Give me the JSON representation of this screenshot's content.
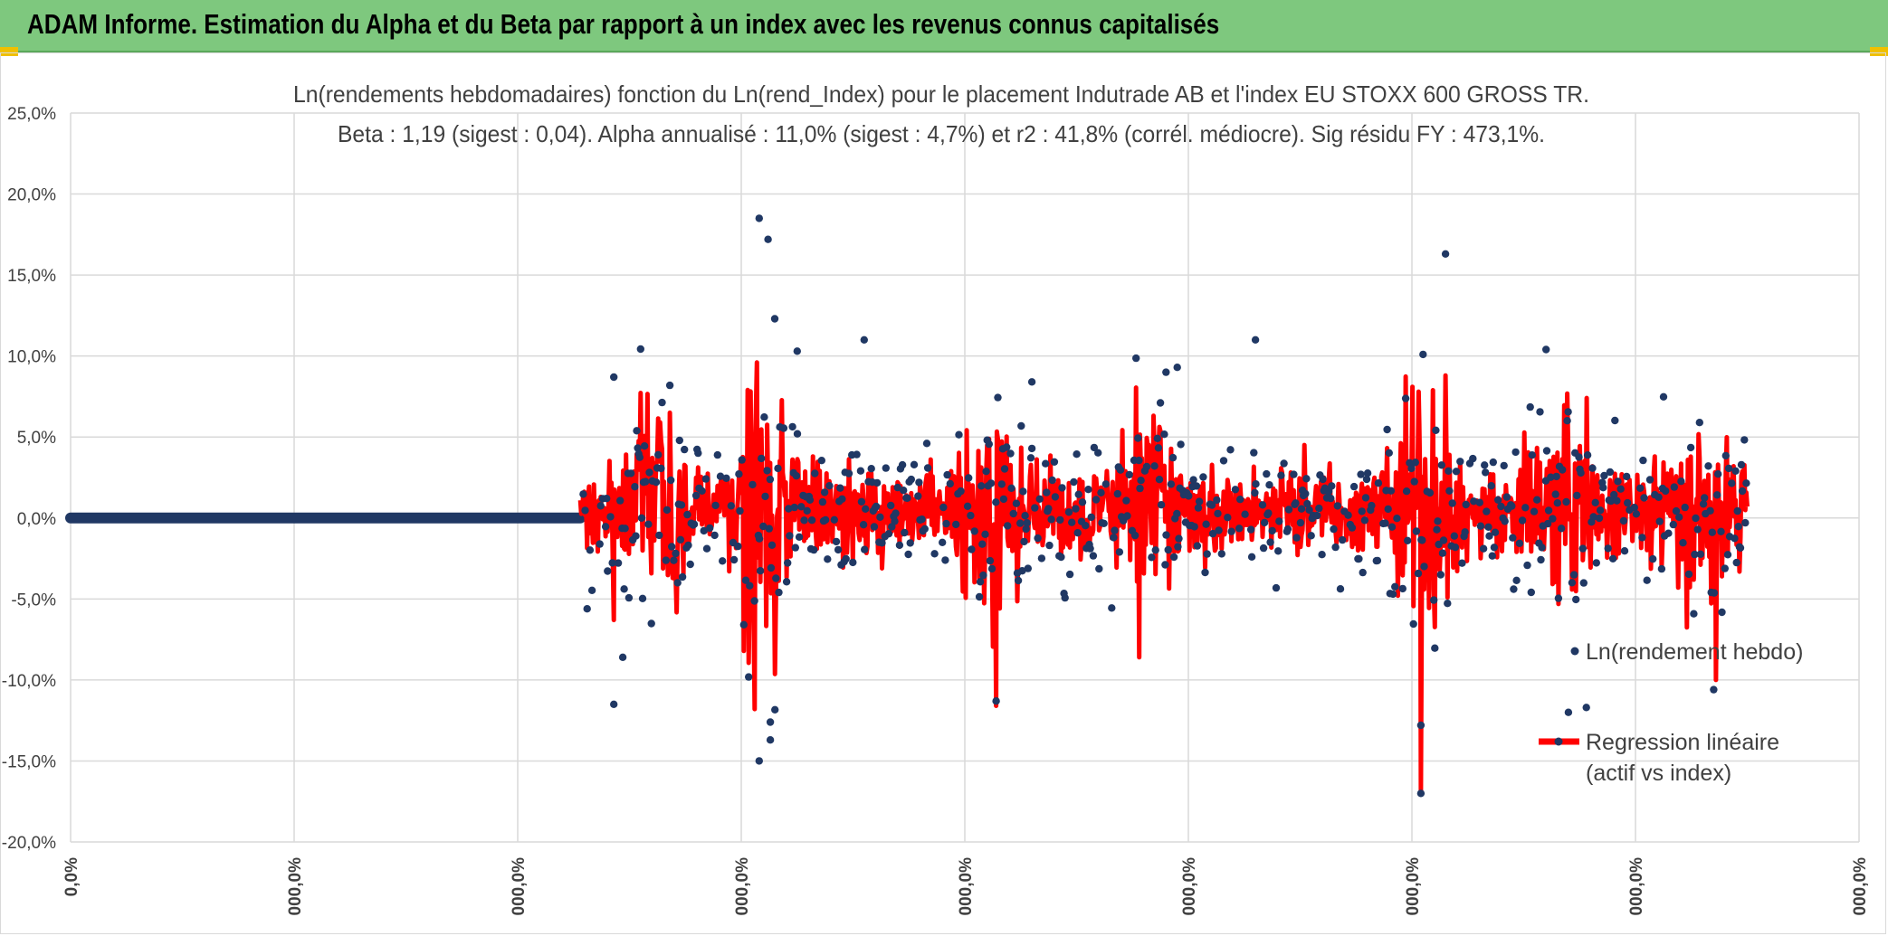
{
  "header": {
    "title": "ADAM Informe. Estimation du Alpha et du Beta par rapport à un index avec les revenus connus capitalisés"
  },
  "colors": {
    "header_bg": "#7ec87e",
    "points": "#203864",
    "regression": "#ff0000",
    "grid": "#d9d9d9",
    "text": "#404040"
  },
  "chart_data": {
    "type": "scatter",
    "title": "Ln(rendements hebdomadaires) fonction du Ln(rend_Index) pour le placement Indutrade AB et l'index EU STOXX 600 GROSS TR.",
    "subtitle": "Beta : 1,19 (sigest : 0,04). Alpha annualisé : 11,0% (sigest : 4,7%) et r2 : 41,8% (corrél. médiocre). Sig résidu FY : 473,1%.",
    "y_ticks": [
      "25,0%",
      "20,0%",
      "15,0%",
      "10,0%",
      "5,0%",
      "0,0%",
      "-5,0%",
      "-10,0%",
      "-15,0%",
      "-20,0%"
    ],
    "x_ticks": [
      "0,0%",
      "000,0%",
      "000,0%",
      "000,0%",
      "000,0%",
      "000,0%",
      "000,0%",
      "000,0%",
      "000,0%"
    ],
    "ylim": [
      -20,
      25
    ],
    "xlim": [
      0,
      8
    ],
    "grid": true,
    "legend_position": "bottom-right",
    "flat_segment": {
      "x_start": 0,
      "x_end": 2.28,
      "y": 0
    },
    "data_x_range": [
      2.28,
      7.5
    ],
    "series": [
      {
        "name": "Ln(rendement hebdo)",
        "kind": "points"
      },
      {
        "name": "Regression linéaire (actif vs index)",
        "kind": "line"
      }
    ],
    "notable_points": [
      {
        "x": 3.08,
        "y": 18.5
      },
      {
        "x": 3.12,
        "y": 17.2
      },
      {
        "x": 3.15,
        "y": 12.3
      },
      {
        "x": 3.25,
        "y": 10.3
      },
      {
        "x": 3.55,
        "y": 11.0
      },
      {
        "x": 5.3,
        "y": 11.0
      },
      {
        "x": 6.15,
        "y": 16.3
      },
      {
        "x": 6.05,
        "y": 10.1
      },
      {
        "x": 6.6,
        "y": 10.4
      },
      {
        "x": 3.08,
        "y": -15.0
      },
      {
        "x": 3.13,
        "y": -13.7
      },
      {
        "x": 3.13,
        "y": -12.6
      },
      {
        "x": 4.14,
        "y": -11.3
      },
      {
        "x": 2.43,
        "y": -11.5
      },
      {
        "x": 2.47,
        "y": -8.6
      },
      {
        "x": 6.04,
        "y": -17.0
      },
      {
        "x": 6.04,
        "y": -12.8
      },
      {
        "x": 6.7,
        "y": -12.0
      },
      {
        "x": 6.78,
        "y": -11.7
      },
      {
        "x": 7.35,
        "y": -10.6
      },
      {
        "x": 2.43,
        "y": 8.7
      },
      {
        "x": 4.3,
        "y": 8.4
      },
      {
        "x": 4.95,
        "y": 9.3
      },
      {
        "x": 4.9,
        "y": 9.0
      }
    ],
    "regression_extremes": [
      {
        "x": 3.07,
        "y": 9.6
      },
      {
        "x": 3.06,
        "y": -11.8
      },
      {
        "x": 6.04,
        "y": -16.8
      },
      {
        "x": 6.15,
        "y": 8.8
      },
      {
        "x": 4.14,
        "y": -11.6
      },
      {
        "x": 7.36,
        "y": -10.0
      },
      {
        "x": 4.78,
        "y": -8.6
      },
      {
        "x": 2.43,
        "y": -6.3
      },
      {
        "x": 6.03,
        "y": 7.8
      }
    ]
  }
}
